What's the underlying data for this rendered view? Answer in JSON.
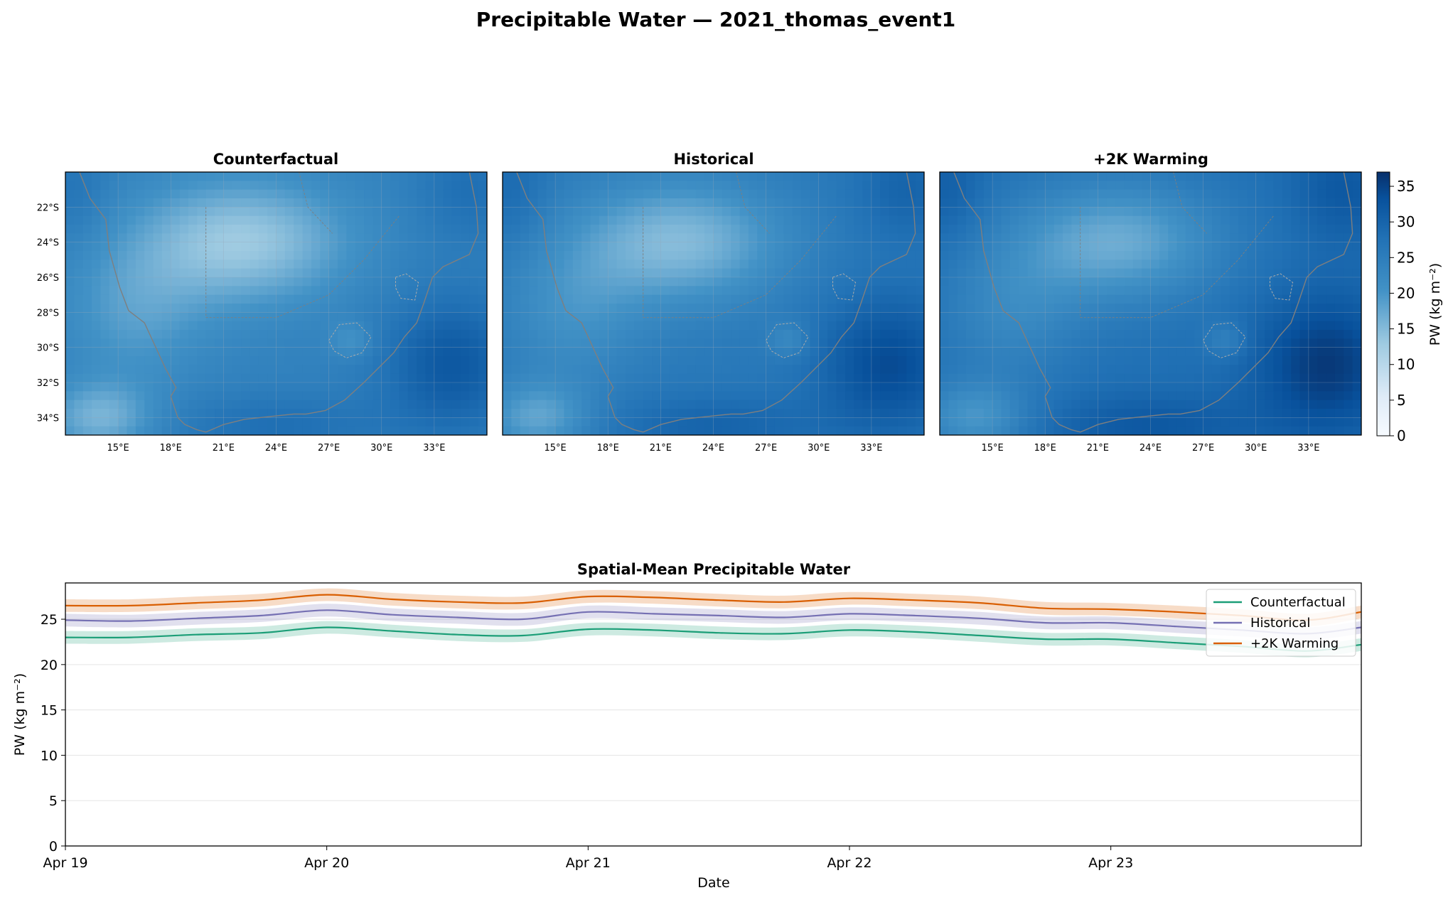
{
  "figure": {
    "title": "Precipitable Water — 2021_thomas_event1"
  },
  "colors": {
    "counterfactual": "#1b9e77",
    "historical": "#7570b3",
    "warming": "#d95f02",
    "grid": "#e5e5e5",
    "coast": "#7f7f7f",
    "colormap_low": "#f7fbff",
    "colormap_mid": "#4292c6",
    "colormap_high": "#08306b"
  },
  "maps": {
    "panels": [
      {
        "title": "Counterfactual",
        "pw_offset": 0
      },
      {
        "title": "Historical",
        "pw_offset": 2
      },
      {
        "title": "+2K Warming",
        "pw_offset": 4
      }
    ],
    "lon_ticks": [
      "15°E",
      "18°E",
      "21°E",
      "24°E",
      "27°E",
      "30°E",
      "33°E"
    ],
    "lon_values": [
      15,
      18,
      21,
      24,
      27,
      30,
      33
    ],
    "lat_ticks": [
      "22°S",
      "24°S",
      "26°S",
      "28°S",
      "30°S",
      "32°S",
      "34°S"
    ],
    "lat_values": [
      -22,
      -24,
      -26,
      -28,
      -30,
      -32,
      -34
    ],
    "lon_range": [
      12,
      36
    ],
    "lat_range": [
      -35,
      -20
    ],
    "colorbar": {
      "label": "PW (kg m⁻²)",
      "ticks": [
        "0",
        "5",
        "10",
        "15",
        "20",
        "25",
        "30",
        "35"
      ],
      "tick_values": [
        0,
        5,
        10,
        15,
        20,
        25,
        30,
        35
      ],
      "range": [
        0,
        37
      ]
    }
  },
  "chart_data": {
    "type": "line",
    "title": "Spatial-Mean Precipitable Water",
    "xlabel": "Date",
    "ylabel": "PW (kg m⁻²)",
    "x_ticks": [
      "Apr 19",
      "Apr 20",
      "Apr 21",
      "Apr 22",
      "Apr 23"
    ],
    "x": [
      "Apr 19 00:00",
      "Apr 19 06:00",
      "Apr 19 12:00",
      "Apr 19 18:00",
      "Apr 20 00:00",
      "Apr 20 06:00",
      "Apr 20 12:00",
      "Apr 20 18:00",
      "Apr 21 00:00",
      "Apr 21 06:00",
      "Apr 21 12:00",
      "Apr 21 18:00",
      "Apr 22 00:00",
      "Apr 22 06:00",
      "Apr 22 12:00",
      "Apr 22 18:00",
      "Apr 23 00:00",
      "Apr 23 06:00",
      "Apr 23 12:00",
      "Apr 23 18:00",
      "Apr 23 23:00"
    ],
    "ylim": [
      0,
      29
    ],
    "y_ticks": [
      0,
      5,
      10,
      15,
      20,
      25
    ],
    "grid": "y",
    "legend": "top-right",
    "series": [
      {
        "name": "Counterfactual",
        "color": "#1b9e77",
        "values": [
          23.0,
          23.0,
          23.3,
          23.5,
          24.1,
          23.7,
          23.3,
          23.2,
          23.9,
          23.8,
          23.5,
          23.4,
          23.8,
          23.6,
          23.2,
          22.8,
          22.8,
          22.4,
          22.0,
          21.5,
          22.2
        ],
        "band": 0.7
      },
      {
        "name": "Historical",
        "color": "#7570b3",
        "values": [
          24.9,
          24.8,
          25.1,
          25.4,
          26.0,
          25.5,
          25.2,
          25.0,
          25.8,
          25.6,
          25.4,
          25.2,
          25.6,
          25.4,
          25.1,
          24.6,
          24.6,
          24.2,
          23.8,
          23.4,
          24.1
        ],
        "band": 0.7
      },
      {
        "name": "+2K Warming",
        "color": "#d95f02",
        "values": [
          26.5,
          26.5,
          26.8,
          27.1,
          27.7,
          27.2,
          26.9,
          26.8,
          27.5,
          27.4,
          27.1,
          26.9,
          27.3,
          27.1,
          26.8,
          26.2,
          26.1,
          25.8,
          25.4,
          24.9,
          25.8
        ],
        "band": 0.7
      }
    ]
  }
}
